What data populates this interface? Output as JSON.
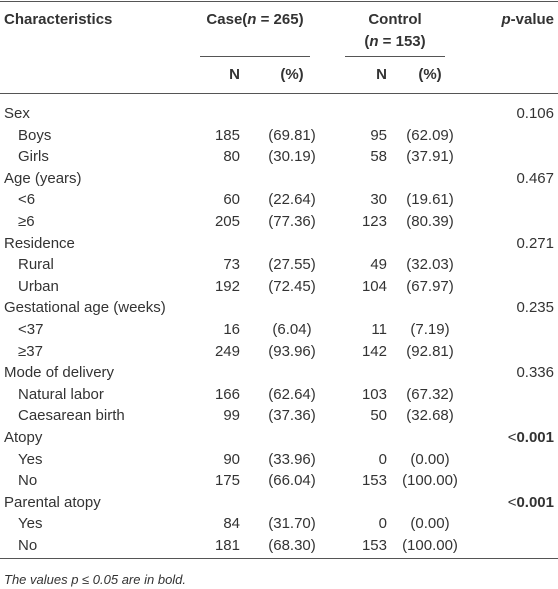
{
  "header": {
    "characteristics": "Characteristics",
    "case": [
      "Case(",
      "n",
      " = 265)"
    ],
    "control_line1": "Control",
    "control_line2": [
      "(",
      "n",
      " = 153)"
    ],
    "pvalue": [
      "p",
      "-value"
    ]
  },
  "subheader": [
    "N",
    "(%)",
    "N",
    "(%)"
  ],
  "groups": [
    {
      "label": "Sex",
      "p": "0.106",
      "items": [
        {
          "label": "Boys",
          "cells": [
            "185",
            "(69.81)",
            "95",
            "(62.09)"
          ]
        },
        {
          "label": "Girls",
          "cells": [
            "80",
            "(30.19)",
            "58",
            "(37.91)"
          ]
        }
      ]
    },
    {
      "label": "Age (years)",
      "p": "0.467",
      "items": [
        {
          "label": "<6",
          "cells": [
            "60",
            "(22.64)",
            "30",
            "(19.61)"
          ]
        },
        {
          "label": "≥6",
          "cells": [
            "205",
            "(77.36)",
            "123",
            "(80.39)"
          ]
        }
      ]
    },
    {
      "label": "Residence",
      "p": "0.271",
      "items": [
        {
          "label": "Rural",
          "cells": [
            "73",
            "(27.55)",
            "49",
            "(32.03)"
          ]
        },
        {
          "label": "Urban",
          "cells": [
            "192",
            "(72.45)",
            "104",
            "(67.97)"
          ]
        }
      ]
    },
    {
      "label": "Gestational age (weeks)",
      "p": "0.235",
      "items": [
        {
          "label": "<37",
          "cells": [
            "16",
            "(6.04)",
            "11",
            "(7.19)"
          ]
        },
        {
          "label": "≥37",
          "cells": [
            "249",
            "(93.96)",
            "142",
            "(92.81)"
          ]
        }
      ]
    },
    {
      "label": "Mode of delivery",
      "p": "0.336",
      "items": [
        {
          "label": "Natural labor",
          "cells": [
            "166",
            "(62.64)",
            "103",
            "(67.32)"
          ]
        },
        {
          "label": "Caesarean birth",
          "cells": [
            "99",
            "(37.36)",
            "50",
            "(32.68)"
          ]
        }
      ]
    },
    {
      "label": "Atopy",
      "p_prefix": "<",
      "p": "0.001",
      "bold": true,
      "items": [
        {
          "label": "Yes",
          "cells": [
            "90",
            "(33.96)",
            "0",
            "(0.00)"
          ]
        },
        {
          "label": "No",
          "cells": [
            "175",
            "(66.04)",
            "153",
            "(100.00)"
          ]
        }
      ]
    },
    {
      "label": "Parental atopy",
      "p_prefix": "<",
      "p": "0.001",
      "bold": true,
      "items": [
        {
          "label": "Yes",
          "cells": [
            "84",
            "(31.70)",
            "0",
            "(0.00)"
          ]
        },
        {
          "label": "No",
          "cells": [
            "181",
            "(68.30)",
            "153",
            "(100.00)"
          ]
        }
      ]
    }
  ],
  "footnote": "The values p ≤ 0.05 are in bold."
}
